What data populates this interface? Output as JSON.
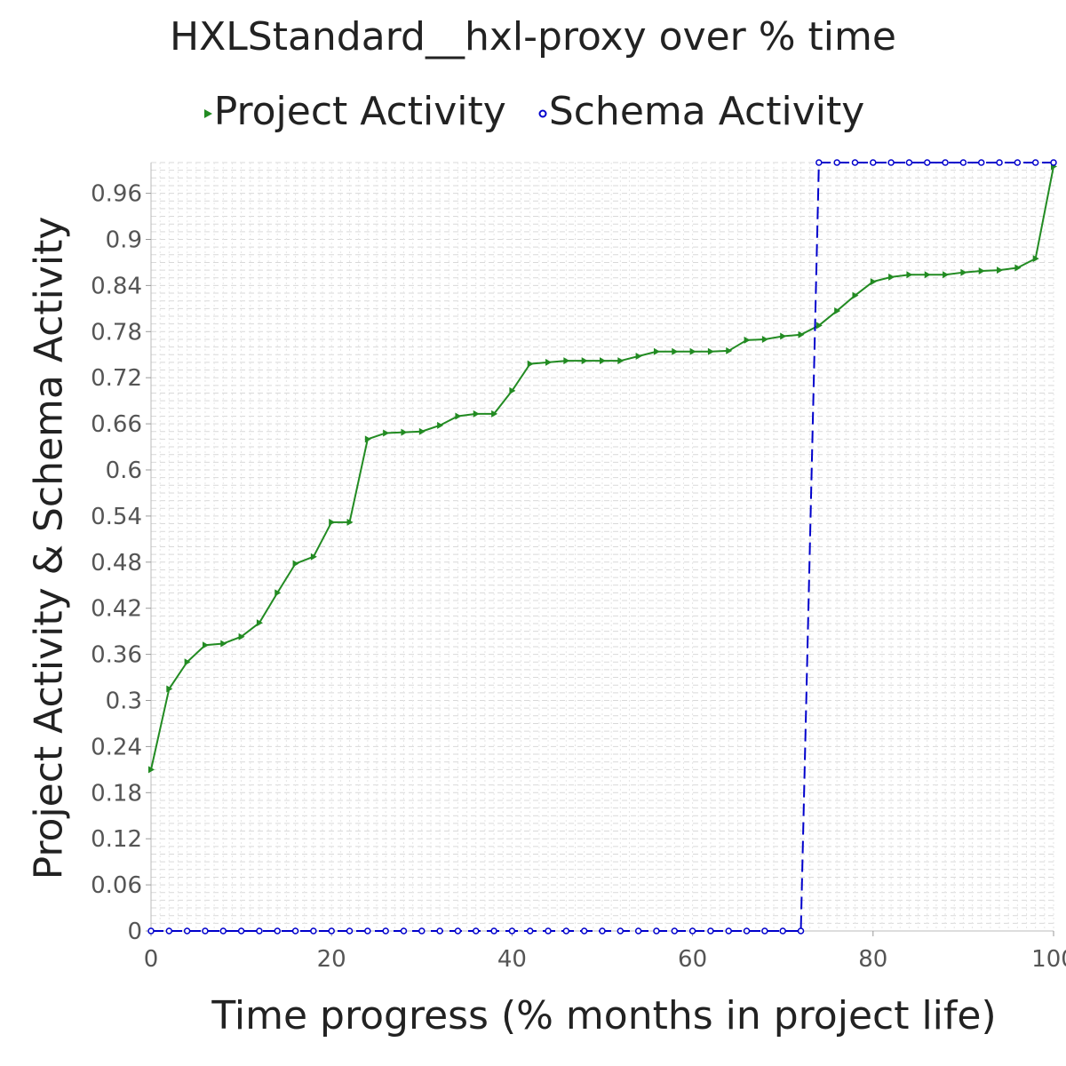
{
  "chart_data": {
    "type": "line",
    "title": "HXLStandard__hxl-proxy over % time",
    "xlabel": "Time progress (% months in project life)",
    "ylabel": "Project Activity & Schema Activity",
    "xlim": [
      0,
      100
    ],
    "ylim": [
      0,
      1.0
    ],
    "x_ticks": [
      "0",
      "20",
      "40",
      "60",
      "80",
      "100"
    ],
    "y_ticks": [
      "0",
      "0.06",
      "0.12",
      "0.18",
      "0.24",
      "0.3",
      "0.36",
      "0.42",
      "0.48",
      "0.54",
      "0.6",
      "0.66",
      "0.72",
      "0.78",
      "0.84",
      "0.9",
      "0.96"
    ],
    "grid": true,
    "legend_position": "top",
    "series": [
      {
        "name": "Project Activity",
        "color": "#228B22",
        "line_style": "solid",
        "marker": "triangle-right",
        "points": [
          [
            0,
            0.21
          ],
          [
            2,
            0.315
          ],
          [
            4,
            0.35
          ],
          [
            6,
            0.372
          ],
          [
            8,
            0.374
          ],
          [
            10,
            0.383
          ],
          [
            12,
            0.401
          ],
          [
            14,
            0.44
          ],
          [
            16,
            0.478
          ],
          [
            18,
            0.487
          ],
          [
            20,
            0.532
          ],
          [
            22,
            0.532
          ],
          [
            24,
            0.64
          ],
          [
            26,
            0.648
          ],
          [
            28,
            0.649
          ],
          [
            30,
            0.65
          ],
          [
            32,
            0.658
          ],
          [
            34,
            0.67
          ],
          [
            36,
            0.673
          ],
          [
            38,
            0.673
          ],
          [
            40,
            0.703
          ],
          [
            42,
            0.738
          ],
          [
            44,
            0.74
          ],
          [
            46,
            0.742
          ],
          [
            48,
            0.742
          ],
          [
            50,
            0.742
          ],
          [
            52,
            0.742
          ],
          [
            54,
            0.748
          ],
          [
            56,
            0.754
          ],
          [
            58,
            0.754
          ],
          [
            60,
            0.754
          ],
          [
            62,
            0.754
          ],
          [
            64,
            0.755
          ],
          [
            66,
            0.769
          ],
          [
            68,
            0.77
          ],
          [
            70,
            0.774
          ],
          [
            72,
            0.776
          ],
          [
            74,
            0.788
          ],
          [
            76,
            0.807
          ],
          [
            78,
            0.827
          ],
          [
            80,
            0.845
          ],
          [
            82,
            0.851
          ],
          [
            84,
            0.854
          ],
          [
            86,
            0.854
          ],
          [
            88,
            0.854
          ],
          [
            90,
            0.857
          ],
          [
            92,
            0.859
          ],
          [
            94,
            0.86
          ],
          [
            96,
            0.863
          ],
          [
            98,
            0.875
          ],
          [
            100,
            0.995
          ]
        ]
      },
      {
        "name": "Schema Activity",
        "color": "#0000CC",
        "line_style": "dashed",
        "marker": "circle",
        "points": [
          [
            0,
            0
          ],
          [
            2,
            0
          ],
          [
            4,
            0
          ],
          [
            6,
            0
          ],
          [
            8,
            0
          ],
          [
            10,
            0
          ],
          [
            12,
            0
          ],
          [
            14,
            0
          ],
          [
            16,
            0
          ],
          [
            18,
            0
          ],
          [
            20,
            0
          ],
          [
            22,
            0
          ],
          [
            24,
            0
          ],
          [
            26,
            0
          ],
          [
            28,
            0
          ],
          [
            30,
            0
          ],
          [
            32,
            0
          ],
          [
            34,
            0
          ],
          [
            36,
            0
          ],
          [
            38,
            0
          ],
          [
            40,
            0
          ],
          [
            42,
            0
          ],
          [
            44,
            0
          ],
          [
            46,
            0
          ],
          [
            48,
            0
          ],
          [
            50,
            0
          ],
          [
            52,
            0
          ],
          [
            54,
            0
          ],
          [
            56,
            0
          ],
          [
            58,
            0
          ],
          [
            60,
            0
          ],
          [
            62,
            0
          ],
          [
            64,
            0
          ],
          [
            66,
            0
          ],
          [
            68,
            0
          ],
          [
            70,
            0
          ],
          [
            72,
            0
          ],
          [
            74,
            1.0
          ],
          [
            76,
            1.0
          ],
          [
            78,
            1.0
          ],
          [
            80,
            1.0
          ],
          [
            82,
            1.0
          ],
          [
            84,
            1.0
          ],
          [
            86,
            1.0
          ],
          [
            88,
            1.0
          ],
          [
            90,
            1.0
          ],
          [
            92,
            1.0
          ],
          [
            94,
            1.0
          ],
          [
            96,
            1.0
          ],
          [
            98,
            1.0
          ],
          [
            100,
            1.0
          ]
        ]
      }
    ]
  }
}
